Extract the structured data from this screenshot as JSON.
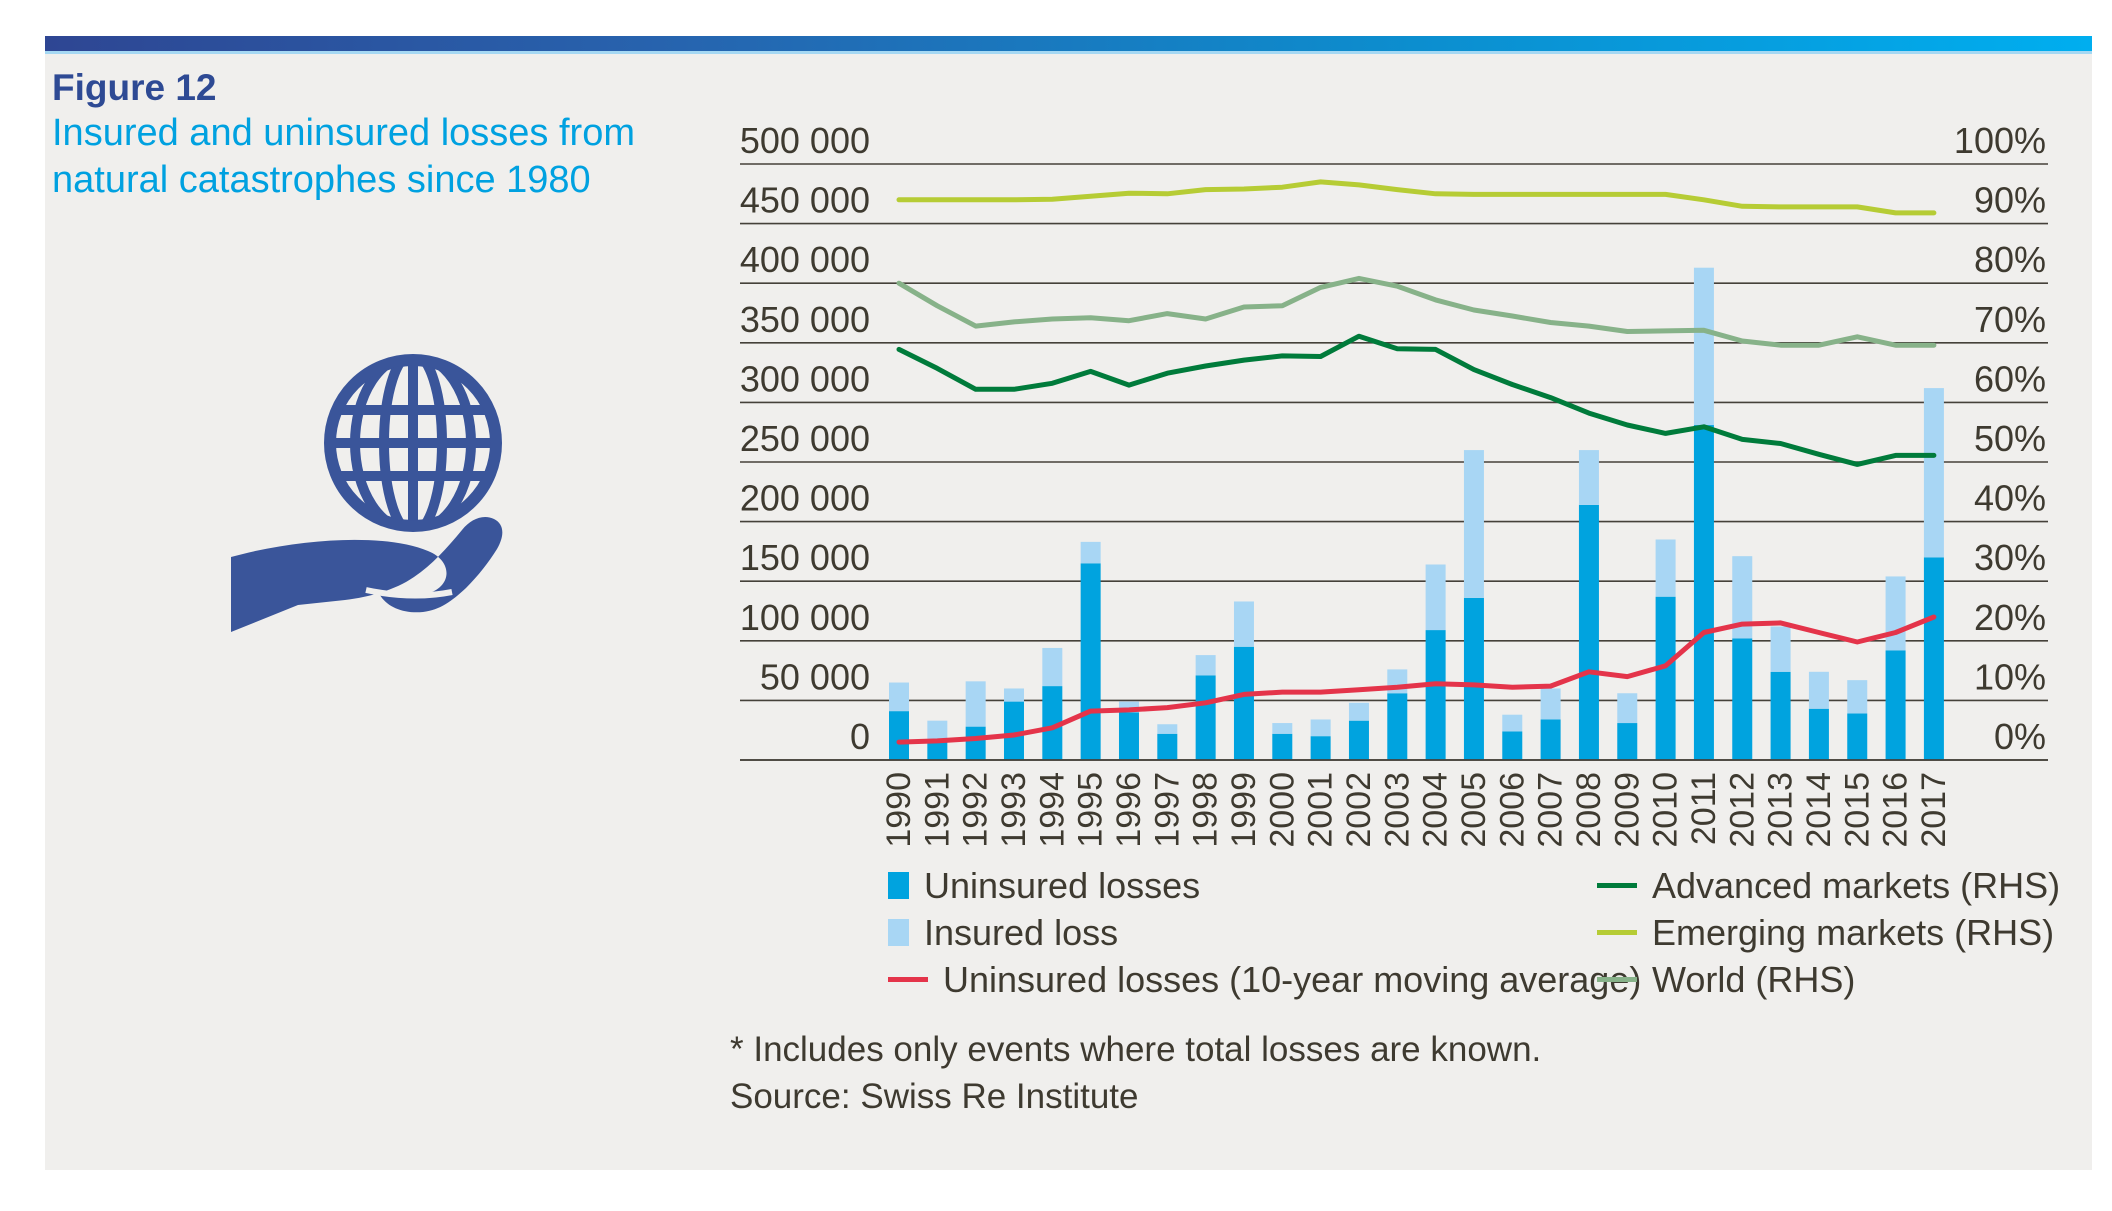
{
  "page": {
    "figure_label": "Figure 12",
    "title_line1": "Insured and uninsured losses from",
    "title_line2": "natural catastrophes since 1980"
  },
  "colors": {
    "accent_navy": "#2e4a94",
    "title_cyan": "#00a1e0",
    "bar_uninsured": "#00a3df",
    "bar_insured": "#a8d6f4",
    "line_moving_avg": "#e4344a",
    "line_advanced": "#007b3b",
    "line_emerging": "#b6cc35",
    "line_world": "#87b289",
    "axis_text": "#3e3a30",
    "gridline": "#45413a",
    "panel_bg": "#f0efed",
    "icon_blue": "#3a559a"
  },
  "chart_data": {
    "type": "bar+line",
    "title": "Insured and uninsured losses from natural catastrophes since 1980",
    "xlabel": "",
    "ylabel_left": "",
    "ylabel_right": "",
    "grid": true,
    "legend_position": "bottom",
    "categories": [
      "1990",
      "1991",
      "1992",
      "1993",
      "1994",
      "1995",
      "1996",
      "1997",
      "1998",
      "1999",
      "2000",
      "2001",
      "2002",
      "2003",
      "2004",
      "2005",
      "2006",
      "2007",
      "2008",
      "2009",
      "2010",
      "2011",
      "2012",
      "2013",
      "2014",
      "2015",
      "2016",
      "2017"
    ],
    "left_axis": {
      "min": 0,
      "max": 500000,
      "step": 50000,
      "tick_labels": [
        "500 000",
        "450 000",
        "400 000",
        "350 000",
        "300 000",
        "250 000",
        "200 000",
        "150 000",
        "100 000",
        "50 000",
        "0"
      ]
    },
    "right_axis": {
      "min": 0,
      "max": 100,
      "step": 10,
      "tick_labels": [
        "100%",
        "90%",
        "80%",
        "70%",
        "60%",
        "50%",
        "40%",
        "30%",
        "20%",
        "10%",
        "0%"
      ]
    },
    "series": [
      {
        "name": "Uninsured losses",
        "type": "bar",
        "axis": "left",
        "color_key": "bar_uninsured",
        "values": [
          41000,
          17000,
          28000,
          49000,
          62000,
          165000,
          40000,
          22000,
          71000,
          95000,
          22000,
          20000,
          33000,
          56000,
          109000,
          136000,
          24000,
          34000,
          214000,
          31000,
          137000,
          281000,
          102000,
          74000,
          43000,
          39000,
          92000,
          170000
        ]
      },
      {
        "name": "Insured loss",
        "type": "bar",
        "axis": "left",
        "color_key": "bar_insured",
        "values": [
          24000,
          16000,
          38000,
          11000,
          32000,
          18000,
          9000,
          8000,
          17000,
          38000,
          9000,
          14000,
          15000,
          20000,
          55000,
          124000,
          14000,
          26000,
          46000,
          25000,
          48000,
          132000,
          69000,
          38000,
          31000,
          28000,
          62000,
          142000
        ]
      },
      {
        "name": "Uninsured losses (10-year moving average)",
        "type": "line",
        "axis": "left",
        "color_key": "line_moving_avg",
        "values": [
          15000,
          16000,
          18000,
          21000,
          27000,
          41000,
          42000,
          44000,
          48000,
          55000,
          57000,
          57000,
          59000,
          61000,
          64000,
          63000,
          61000,
          62000,
          74000,
          70000,
          79000,
          107000,
          114000,
          115000,
          107000,
          99000,
          107000,
          120000
        ]
      },
      {
        "name": "Advanced markets (RHS)",
        "type": "line",
        "axis": "right",
        "color_key": "line_advanced",
        "values": [
          68.9,
          65.7,
          62.2,
          62.2,
          63.2,
          65.2,
          62.9,
          64.9,
          66.1,
          67.1,
          67.8,
          67.7,
          71.1,
          69.0,
          68.9,
          65.5,
          63.0,
          60.8,
          58.2,
          56.2,
          54.8,
          55.9,
          53.8,
          53.1,
          51.3,
          49.6,
          51.1,
          51.1
        ]
      },
      {
        "name": "Emerging markets (RHS)",
        "type": "line",
        "axis": "right",
        "color_key": "line_emerging",
        "values": [
          94.0,
          94.0,
          94.0,
          94.0,
          94.1,
          94.6,
          95.1,
          95.0,
          95.7,
          95.8,
          96.1,
          97.0,
          96.5,
          95.7,
          95.0,
          94.9,
          94.9,
          94.9,
          94.9,
          94.9,
          94.9,
          94.0,
          92.9,
          92.8,
          92.8,
          92.8,
          91.8,
          91.8
        ]
      },
      {
        "name": "World (RHS)",
        "type": "line",
        "axis": "right",
        "color_key": "line_world",
        "values": [
          80.0,
          76.2,
          72.8,
          73.5,
          74.0,
          74.2,
          73.7,
          74.9,
          74.0,
          76.0,
          76.2,
          79.3,
          80.8,
          79.5,
          77.2,
          75.5,
          74.5,
          73.4,
          72.8,
          71.9,
          72.0,
          72.1,
          70.3,
          69.6,
          69.6,
          71.0,
          69.6,
          69.6
        ]
      }
    ]
  },
  "legend": {
    "left": [
      {
        "label": "Uninsured losses",
        "swatch": "square",
        "color_key": "bar_uninsured"
      },
      {
        "label": "Insured loss",
        "swatch": "square",
        "color_key": "bar_insured"
      },
      {
        "label": "Uninsured losses (10-year moving average)",
        "swatch": "line",
        "color_key": "line_moving_avg"
      }
    ],
    "right": [
      {
        "label": "Advanced markets (RHS)",
        "swatch": "line",
        "color_key": "line_advanced"
      },
      {
        "label": "Emerging markets (RHS)",
        "swatch": "line",
        "color_key": "line_emerging"
      },
      {
        "label": "World (RHS)",
        "swatch": "line",
        "color_key": "line_world"
      }
    ]
  },
  "footnotes": [
    "* Includes only events where total losses are known.",
    "Source: Swiss Re Institute"
  ]
}
